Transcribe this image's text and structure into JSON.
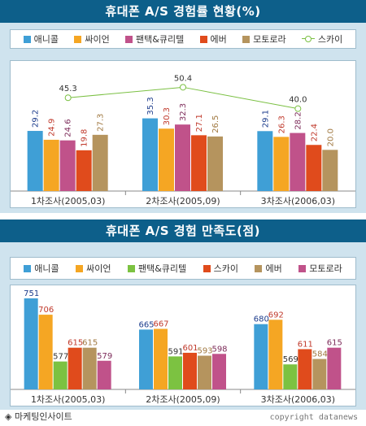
{
  "colors": {
    "anycall": "#3f9fd6",
    "cyon": "#f5a623",
    "pantech": "#c0528a",
    "ever": "#e04b1c",
    "motorola": "#b5945e",
    "sky": "#7bc043",
    "pantech_green": "#7cc241",
    "header_bg": "#0d5f8a",
    "panel_bg": "#cfe3ee"
  },
  "chart_data": [
    {
      "type": "bar",
      "title": "휴대폰 A/S 경험률 현황(%)",
      "categories": [
        "1차조사(2005,03)",
        "2차조사(2005,09)",
        "3차조사(2006,03)"
      ],
      "series": [
        {
          "name": "애니콜",
          "values": [
            29.2,
            35.3,
            29.1
          ],
          "color": "#3f9fd6"
        },
        {
          "name": "싸이언",
          "values": [
            24.9,
            30.3,
            26.3
          ],
          "color": "#f5a623"
        },
        {
          "name": "팬택&큐리텔",
          "values": [
            24.6,
            32.3,
            28.2
          ],
          "color": "#c0528a"
        },
        {
          "name": "에버",
          "values": [
            19.8,
            27.1,
            22.4
          ],
          "color": "#e04b1c"
        },
        {
          "name": "모토로라",
          "values": [
            27.3,
            26.5,
            20.0
          ],
          "color": "#b5945e"
        }
      ],
      "line_series": {
        "name": "스카이",
        "values": [
          45.3,
          50.4,
          40.0
        ],
        "color": "#7bc043"
      },
      "value_labels": [
        [
          "29.2",
          "24.9",
          "24.6",
          "19.8",
          "27.3"
        ],
        [
          "35.3",
          "30.3",
          "32.3",
          "27.1",
          "26.5"
        ],
        [
          "29.1",
          "26.3",
          "28.2",
          "22.4",
          "20.0"
        ]
      ],
      "line_labels": [
        "45.3",
        "50.4",
        "40.0"
      ],
      "legend": [
        "애니콜",
        "싸이언",
        "팬택&큐리텔",
        "에버",
        "모토로라",
        "스카이"
      ],
      "legend_placement": "top",
      "ylim": [
        0,
        60
      ],
      "grid": false
    },
    {
      "type": "bar",
      "title": "휴대폰 A/S 경험 만족도(점)",
      "categories": [
        "1차조사(2005,03)",
        "2차조사(2005,09)",
        "3차조사(2006,03)"
      ],
      "series": [
        {
          "name": "애니콜",
          "values": [
            751,
            665,
            680
          ],
          "color": "#3f9fd6"
        },
        {
          "name": "싸이언",
          "values": [
            706,
            667,
            692
          ],
          "color": "#f5a623"
        },
        {
          "name": "팬택&큐리텔",
          "values": [
            577,
            591,
            569
          ],
          "color": "#7cc241"
        },
        {
          "name": "스카이",
          "values": [
            615,
            601,
            611
          ],
          "color": "#e04b1c"
        },
        {
          "name": "에버",
          "values": [
            615,
            593,
            584
          ],
          "color": "#b5945e"
        },
        {
          "name": "모토로라",
          "values": [
            579,
            598,
            615
          ],
          "color": "#c0528a"
        }
      ],
      "value_labels": [
        [
          "751",
          "706",
          "577",
          "615",
          "615",
          "579"
        ],
        [
          "665",
          "667",
          "591",
          "601",
          "593",
          "598"
        ],
        [
          "680",
          "692",
          "569",
          "611",
          "584",
          "615"
        ]
      ],
      "legend": [
        "애니콜",
        "싸이언",
        "팬택&큐리텔",
        "스카이",
        "에버",
        "모토로라"
      ],
      "legend_placement": "top",
      "ylim": [
        500,
        760
      ],
      "grid": false
    }
  ],
  "footer": {
    "source": "◈ 마케팅인사이트",
    "copyright": "copyright datanews"
  }
}
